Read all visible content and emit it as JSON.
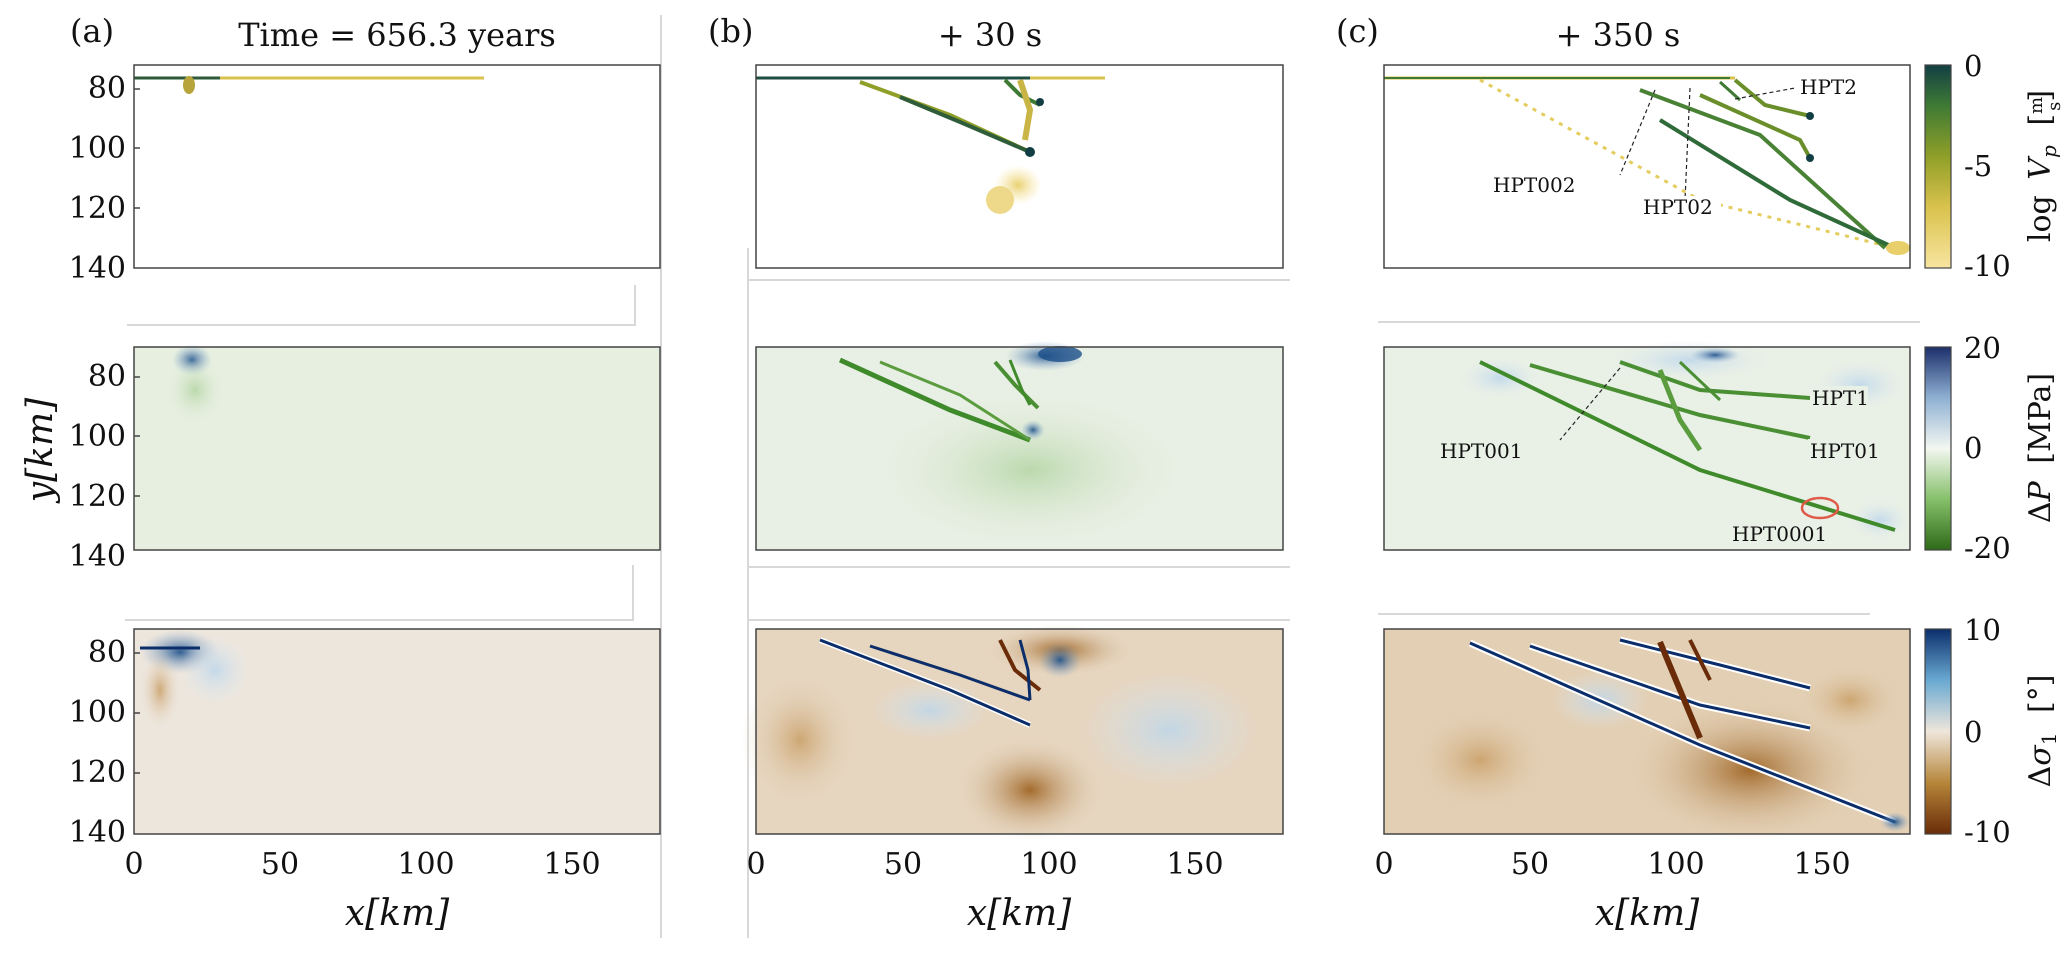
{
  "colors": {
    "vp_cmap": [
      "#f8e5a0",
      "#d9c24c",
      "#8f9f28",
      "#3f7a35",
      "#123f43"
    ],
    "dp_cmap": [
      "#2f6a19",
      "#86c06a",
      "#f3f7f1",
      "#8fb0d3",
      "#1c2f6a"
    ],
    "ds_cmap": [
      "#6a2c08",
      "#b6863a",
      "#efe6db",
      "#6aa9d2",
      "#0b2e6b"
    ],
    "background": "#ffffff",
    "circle": "#e05a4a"
  },
  "chart_data": [
    {
      "type": "heatmap",
      "panel": "(a)",
      "title": "Time = 656.3 years",
      "rows": [
        "log Vp",
        "ΔP",
        "Δσ1"
      ],
      "xlabel": "x[km]",
      "ylabel": "y[km]",
      "xlim": [
        0,
        180
      ],
      "ylim": [
        140,
        70
      ],
      "xticks": [
        0,
        50,
        100,
        150
      ],
      "yticks": [
        80,
        100,
        120,
        140
      ]
    },
    {
      "type": "heatmap",
      "panel": "(b)",
      "title": "+ 30 s",
      "rows": [
        "log Vp",
        "ΔP",
        "Δσ1"
      ],
      "xlabel": "x[km]",
      "xlim": [
        0,
        180
      ],
      "xticks": [
        0,
        50,
        100,
        150
      ]
    },
    {
      "type": "heatmap",
      "panel": "(c)",
      "title": "+ 350 s",
      "rows": [
        "log Vp",
        "ΔP",
        "Δσ1"
      ],
      "xlabel": "x[km]",
      "xlim": [
        0,
        180
      ],
      "xticks": [
        0,
        50,
        100,
        150
      ],
      "annotations_row1": [
        "HPT2",
        "HPT002",
        "HPT02"
      ],
      "annotations_row2": [
        "HPT1",
        "HPT001",
        "HPT01",
        "HPT0001"
      ]
    }
  ],
  "colorbars": [
    {
      "label_parts": [
        "log",
        "V",
        "p",
        "m",
        "s"
      ],
      "ticks": [
        "0",
        "-5",
        "-10"
      ],
      "range": [
        -10,
        0
      ]
    },
    {
      "label_parts": [
        "Δ",
        "P",
        "[MPa]"
      ],
      "ticks": [
        "20",
        "0",
        "-20"
      ],
      "range": [
        -20,
        20
      ]
    },
    {
      "label_parts": [
        "Δ",
        "σ",
        "1",
        "[°]"
      ],
      "ticks": [
        "10",
        "0",
        "-10"
      ],
      "range": [
        -10,
        10
      ]
    }
  ]
}
